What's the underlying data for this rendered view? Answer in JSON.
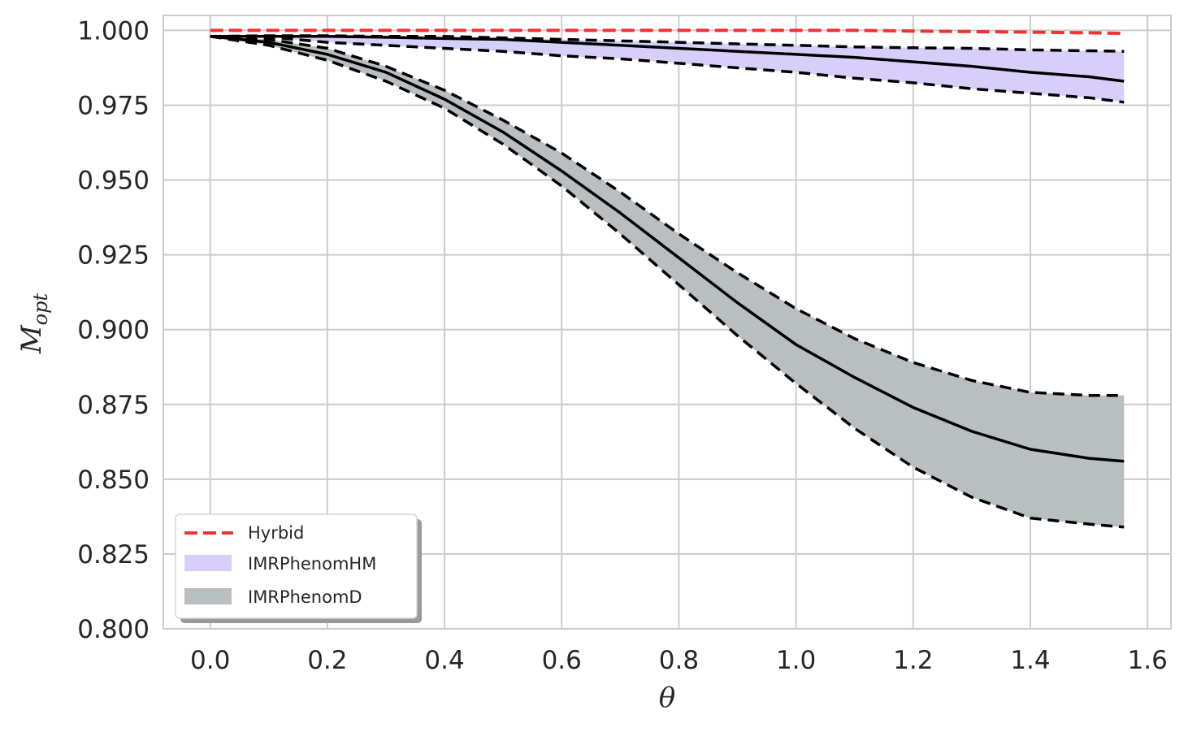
{
  "chart_data": {
    "type": "line",
    "xlabel": "θ",
    "ylabel_main": "M",
    "ylabel_sub": "opt",
    "xlim": [
      -0.08,
      1.64
    ],
    "ylim": [
      0.8,
      1.005
    ],
    "xticks": [
      0.0,
      0.2,
      0.4,
      0.6,
      0.8,
      1.0,
      1.2,
      1.4,
      1.6
    ],
    "xtick_labels": [
      "0.0",
      "0.2",
      "0.4",
      "0.6",
      "0.8",
      "1.0",
      "1.2",
      "1.4",
      "1.6"
    ],
    "yticks": [
      0.8,
      0.825,
      0.85,
      0.875,
      0.9,
      0.925,
      0.95,
      0.975,
      1.0
    ],
    "ytick_labels": [
      "0.800",
      "0.825",
      "0.850",
      "0.875",
      "0.900",
      "0.925",
      "0.950",
      "0.975",
      "1.000"
    ],
    "grid": true,
    "legend_position": "lower-left",
    "x": [
      0.0,
      0.1,
      0.2,
      0.3,
      0.4,
      0.5,
      0.6,
      0.7,
      0.8,
      0.9,
      1.0,
      1.1,
      1.2,
      1.3,
      1.4,
      1.5,
      1.56
    ],
    "series": [
      {
        "name": "Hyrbid",
        "style": "dashed-line",
        "color": "#f03232",
        "values": [
          1.0,
          1.0,
          1.0,
          1.0,
          1.0,
          1.0,
          1.0,
          1.0,
          1.0,
          1.0,
          1.0,
          1.0,
          0.9998,
          0.9996,
          0.9994,
          0.9992,
          0.999
        ]
      },
      {
        "name": "IMRPhenomHM",
        "style": "band",
        "color": "#d7cffa",
        "median": [
          0.998,
          0.998,
          0.998,
          0.9977,
          0.9973,
          0.997,
          0.996,
          0.995,
          0.994,
          0.993,
          0.992,
          0.991,
          0.9895,
          0.988,
          0.986,
          0.9845,
          0.983
        ],
        "upper": [
          0.998,
          0.9982,
          0.9982,
          0.998,
          0.998,
          0.9975,
          0.997,
          0.9965,
          0.996,
          0.9955,
          0.995,
          0.9945,
          0.9942,
          0.994,
          0.9935,
          0.9932,
          0.993
        ],
        "lower": [
          0.998,
          0.9978,
          0.996,
          0.995,
          0.994,
          0.993,
          0.9915,
          0.9905,
          0.989,
          0.9875,
          0.986,
          0.984,
          0.9825,
          0.9805,
          0.979,
          0.9775,
          0.976
        ]
      },
      {
        "name": "IMRPhenomD",
        "style": "band",
        "color": "#b9bfc0",
        "median": [
          0.998,
          0.996,
          0.992,
          0.986,
          0.977,
          0.966,
          0.953,
          0.939,
          0.924,
          0.909,
          0.895,
          0.884,
          0.874,
          0.866,
          0.86,
          0.857,
          0.856
        ],
        "upper": [
          0.998,
          0.997,
          0.994,
          0.988,
          0.98,
          0.97,
          0.959,
          0.946,
          0.932,
          0.919,
          0.907,
          0.897,
          0.889,
          0.883,
          0.879,
          0.878,
          0.878
        ],
        "lower": [
          0.998,
          0.995,
          0.99,
          0.983,
          0.974,
          0.962,
          0.948,
          0.932,
          0.915,
          0.898,
          0.882,
          0.867,
          0.854,
          0.844,
          0.837,
          0.835,
          0.834
        ]
      }
    ]
  }
}
